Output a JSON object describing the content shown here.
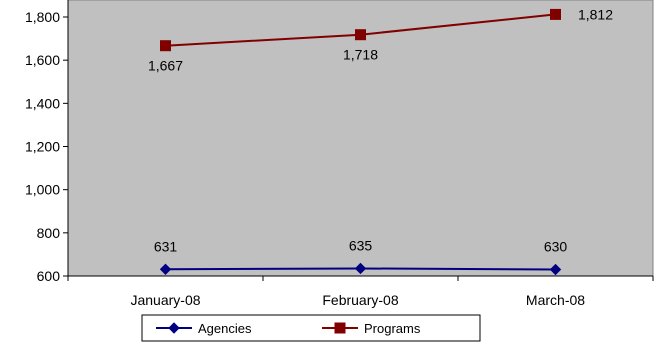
{
  "chart_data": {
    "type": "line",
    "title": "",
    "xlabel": "",
    "ylabel": "",
    "categories": [
      "January-08",
      "February-08",
      "March-08"
    ],
    "ylim": [
      600,
      1800
    ],
    "yticks": [
      600,
      800,
      1000,
      1200,
      1400,
      1600,
      1800
    ],
    "ytick_labels": [
      "600",
      "800",
      "1,000",
      "1,200",
      "1,400",
      "1,600",
      "1,800"
    ],
    "plot_background": "#C0C0C0",
    "grid": false,
    "legend_position": "bottom",
    "series": [
      {
        "name": "Agencies",
        "values": [
          631,
          635,
          630
        ],
        "data_labels": [
          "631",
          "635",
          "630"
        ],
        "color": "#000080",
        "marker": "diamond"
      },
      {
        "name": "Programs",
        "values": [
          1667,
          1718,
          1812
        ],
        "data_labels": [
          "1,667",
          "1,718",
          "1,812"
        ],
        "color": "#800000",
        "marker": "square"
      }
    ]
  }
}
